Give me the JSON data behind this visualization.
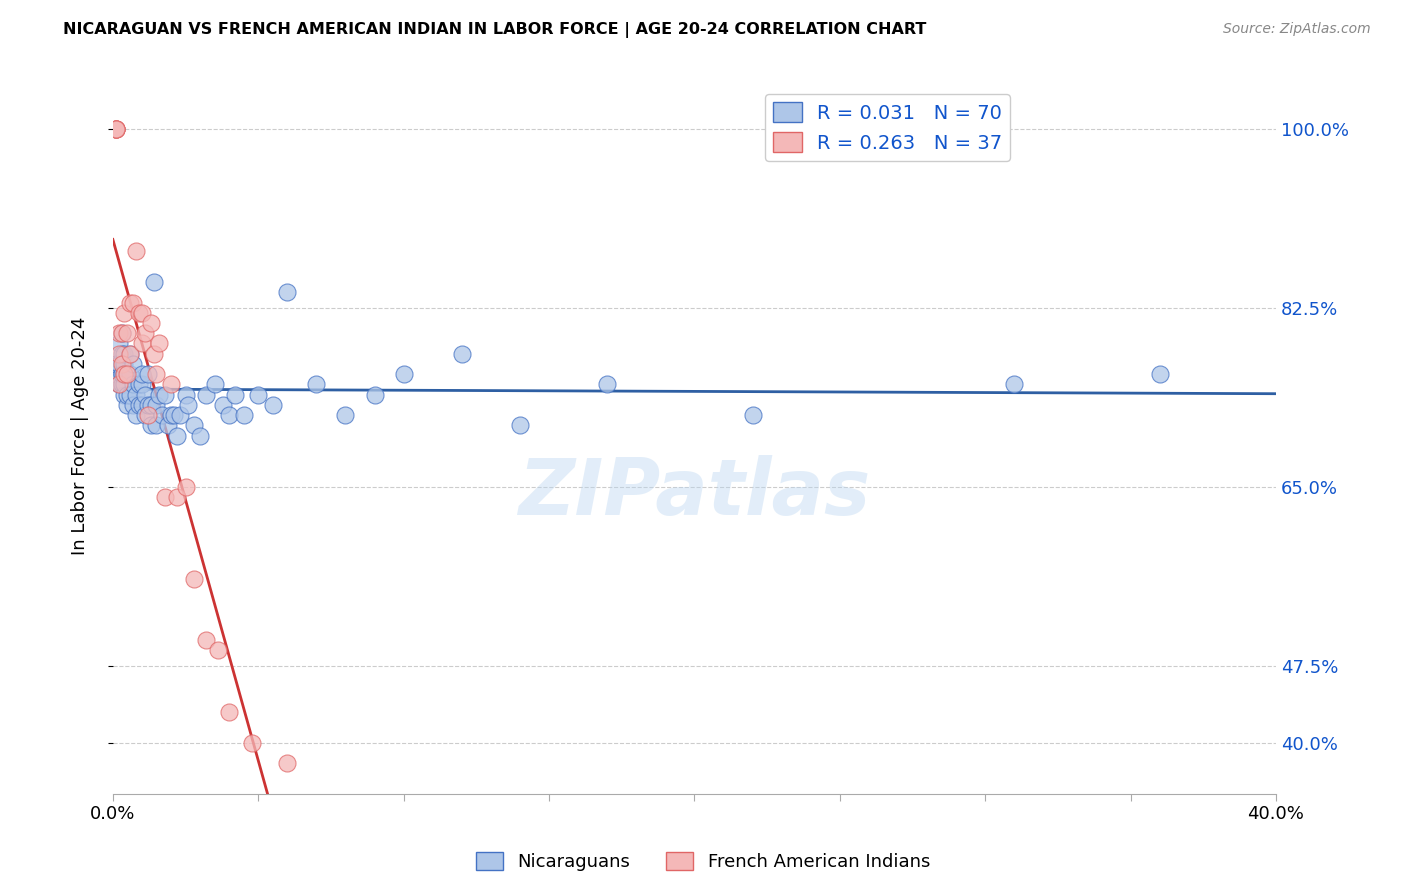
{
  "title": "NICARAGUAN VS FRENCH AMERICAN INDIAN IN LABOR FORCE | AGE 20-24 CORRELATION CHART",
  "source": "Source: ZipAtlas.com",
  "ylabel": "In Labor Force | Age 20-24",
  "ytick_vals": [
    0.4,
    0.475,
    0.65,
    0.825,
    1.0
  ],
  "ytick_labels": [
    "40.0%",
    "47.5%",
    "65.0%",
    "82.5%",
    "100.0%"
  ],
  "blue_R": "0.031",
  "blue_N": "70",
  "pink_R": "0.263",
  "pink_N": "37",
  "blue_color": "#aec6e8",
  "pink_color": "#f4b8b8",
  "blue_edge_color": "#4472c4",
  "pink_edge_color": "#e06666",
  "blue_line_color": "#2e5fa3",
  "pink_line_color": "#cc3333",
  "label_color": "#1155cc",
  "watermark": "ZIPatlas",
  "xlim": [
    0.0,
    0.4
  ],
  "ylim": [
    0.35,
    1.05
  ],
  "blue_scatter_x": [
    0.001,
    0.001,
    0.002,
    0.002,
    0.002,
    0.003,
    0.003,
    0.003,
    0.003,
    0.003,
    0.004,
    0.004,
    0.004,
    0.004,
    0.004,
    0.005,
    0.005,
    0.006,
    0.006,
    0.006,
    0.007,
    0.007,
    0.007,
    0.008,
    0.008,
    0.009,
    0.009,
    0.01,
    0.01,
    0.01,
    0.011,
    0.011,
    0.012,
    0.012,
    0.013,
    0.013,
    0.014,
    0.015,
    0.015,
    0.016,
    0.017,
    0.018,
    0.019,
    0.02,
    0.021,
    0.022,
    0.023,
    0.025,
    0.026,
    0.028,
    0.03,
    0.032,
    0.035,
    0.038,
    0.04,
    0.042,
    0.045,
    0.05,
    0.055,
    0.06,
    0.07,
    0.08,
    0.09,
    0.1,
    0.12,
    0.14,
    0.17,
    0.22,
    0.31,
    0.36
  ],
  "blue_scatter_y": [
    0.76,
    0.77,
    0.75,
    0.77,
    0.79,
    0.75,
    0.76,
    0.78,
    0.8,
    0.76,
    0.74,
    0.75,
    0.77,
    0.78,
    0.76,
    0.73,
    0.74,
    0.74,
    0.76,
    0.78,
    0.73,
    0.75,
    0.77,
    0.72,
    0.74,
    0.73,
    0.75,
    0.73,
    0.75,
    0.76,
    0.72,
    0.74,
    0.73,
    0.76,
    0.71,
    0.73,
    0.85,
    0.71,
    0.73,
    0.74,
    0.72,
    0.74,
    0.71,
    0.72,
    0.72,
    0.7,
    0.72,
    0.74,
    0.73,
    0.71,
    0.7,
    0.74,
    0.75,
    0.73,
    0.72,
    0.74,
    0.72,
    0.74,
    0.73,
    0.84,
    0.75,
    0.72,
    0.74,
    0.76,
    0.78,
    0.71,
    0.75,
    0.72,
    0.75,
    0.76
  ],
  "pink_scatter_x": [
    0.001,
    0.001,
    0.001,
    0.001,
    0.001,
    0.002,
    0.002,
    0.002,
    0.003,
    0.003,
    0.004,
    0.004,
    0.005,
    0.005,
    0.006,
    0.006,
    0.007,
    0.008,
    0.009,
    0.01,
    0.01,
    0.011,
    0.012,
    0.013,
    0.014,
    0.015,
    0.016,
    0.018,
    0.02,
    0.022,
    0.025,
    0.028,
    0.032,
    0.036,
    0.04,
    0.048,
    0.06
  ],
  "pink_scatter_y": [
    1.0,
    1.0,
    1.0,
    1.0,
    1.0,
    0.75,
    0.78,
    0.8,
    0.77,
    0.8,
    0.76,
    0.82,
    0.8,
    0.76,
    0.83,
    0.78,
    0.83,
    0.88,
    0.82,
    0.79,
    0.82,
    0.8,
    0.72,
    0.81,
    0.78,
    0.76,
    0.79,
    0.64,
    0.75,
    0.64,
    0.65,
    0.56,
    0.5,
    0.49,
    0.43,
    0.4,
    0.38
  ]
}
